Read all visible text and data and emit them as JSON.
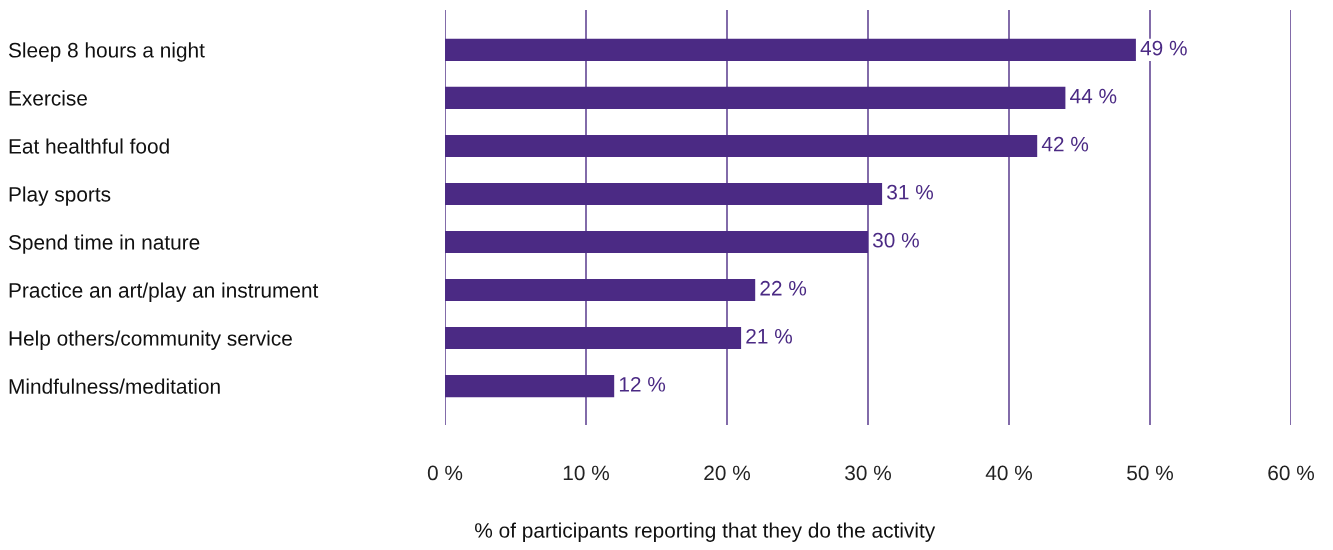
{
  "chart_data": {
    "type": "bar",
    "orientation": "horizontal",
    "xlabel": "% of participants reporting that they do the activity",
    "categories": [
      "Sleep 8 hours a night",
      "Exercise",
      "Eat healthful food",
      "Play sports",
      "Spend time in nature",
      "Practice an art/play an instrument",
      "Help others/community service",
      "Mindfulness/meditation"
    ],
    "values": [
      49,
      44,
      42,
      31,
      30,
      22,
      21,
      12
    ],
    "value_labels": [
      "49 %",
      "44 %",
      "42 %",
      "31 %",
      "30 %",
      "22 %",
      "21 %",
      "12 %"
    ],
    "color": "#4b2a84",
    "xlim": [
      0,
      60
    ],
    "xticks": [
      {
        "value": 0,
        "label": "0 %"
      },
      {
        "value": 10,
        "label": "10 %"
      },
      {
        "value": 20,
        "label": "20 %"
      },
      {
        "value": 30,
        "label": "30 %"
      },
      {
        "value": 40,
        "label": "40 %"
      },
      {
        "value": 50,
        "label": "50 %"
      },
      {
        "value": 60,
        "label": "60 %"
      }
    ],
    "grid": "x"
  }
}
